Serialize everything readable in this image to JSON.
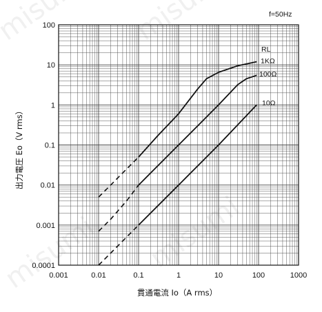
{
  "chart_data": {
    "type": "line",
    "x_scale": "log",
    "y_scale": "log",
    "xlim": [
      0.001,
      1000
    ],
    "ylim": [
      0.0001,
      100
    ],
    "x_ticks": [
      "0.001",
      "0.01",
      "0.1",
      "1",
      "10",
      "100",
      "1000"
    ],
    "y_ticks": [
      "100",
      "10",
      "1",
      "0.1",
      "0.01",
      "0.001",
      "0.0001"
    ],
    "xlabel": "貫通電流 Io（A rms）",
    "ylabel": "出力電圧 Eo（V rms）",
    "grid": true,
    "frequency_note": "f=50Hz",
    "legend_title": "RL",
    "series": [
      {
        "name": "1KΩ",
        "dashed": [
          [
            0.01,
            0.005
          ],
          [
            0.02,
            0.01
          ],
          [
            0.05,
            0.025
          ],
          [
            0.1,
            0.05
          ]
        ],
        "solid": [
          [
            0.1,
            0.05
          ],
          [
            0.3,
            0.17
          ],
          [
            1,
            0.6
          ],
          [
            3,
            2.5
          ],
          [
            5,
            4.5
          ],
          [
            10,
            6.5
          ],
          [
            30,
            9.5
          ],
          [
            90,
            12
          ]
        ]
      },
      {
        "name": "100Ω",
        "dashed": [
          [
            0.01,
            0.0007
          ],
          [
            0.02,
            0.0014
          ],
          [
            0.05,
            0.004
          ],
          [
            0.1,
            0.01
          ]
        ],
        "solid": [
          [
            0.1,
            0.01
          ],
          [
            0.3,
            0.03
          ],
          [
            1,
            0.1
          ],
          [
            3,
            0.3
          ],
          [
            10,
            1
          ],
          [
            30,
            3.2
          ],
          [
            50,
            4.5
          ],
          [
            90,
            5.5
          ]
        ]
      },
      {
        "name": "10Ω",
        "dashed": [
          [
            0.01,
            0.0001
          ],
          [
            0.02,
            0.0002
          ],
          [
            0.05,
            0.0005
          ],
          [
            0.1,
            0.001
          ]
        ],
        "solid": [
          [
            0.1,
            0.001
          ],
          [
            1,
            0.01
          ],
          [
            10,
            0.1
          ],
          [
            90,
            1
          ]
        ]
      }
    ]
  },
  "watermark": "misumi"
}
